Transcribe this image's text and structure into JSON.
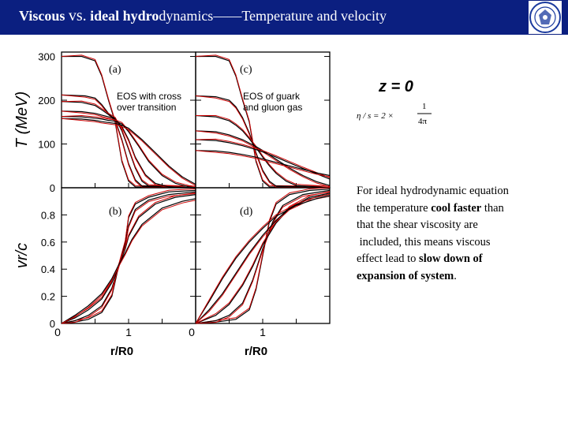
{
  "header": {
    "title_bold1": "Viscous ",
    "title_vs": "vs.",
    "title_bold2": " ideal hydro",
    "title_rest": "dynamics——Temperature and velocity"
  },
  "colors": {
    "header_bg": "#0b1f80",
    "ideal": "#000000",
    "viscous": "#cc0000"
  },
  "formula": {
    "z_eq": "z = 0",
    "eta_lhs": "η / s = 2 ×",
    "num": "1",
    "den": "4π"
  },
  "description": {
    "l1": "For ideal hydrodynamic equation",
    "l2a": "the temperature ",
    "l2b": "cool faster",
    "l2c": " than",
    "l3": "that the shear viscosity are",
    "l4": " included, this means viscous",
    "l5a": "effect lead to ",
    "l5b": "slow down of",
    "l6a": "expansion of system",
    "l6b": "."
  },
  "chart_data": [
    {
      "type": "line",
      "panel_label": "(a)",
      "annotation": [
        "EOS with cross",
        "over transition"
      ],
      "ylabel": "T (MeV)",
      "ylim": [
        0,
        310
      ],
      "yticks": [
        "0",
        "100",
        "200",
        "300"
      ],
      "xlim": [
        0,
        2
      ],
      "series": [
        {
          "points": [
            [
              0,
              300
            ],
            [
              0.3,
              300
            ],
            [
              0.5,
              290
            ],
            [
              0.6,
              255
            ],
            [
              0.7,
              200
            ],
            [
              0.8,
              150
            ],
            [
              0.9,
              60
            ],
            [
              1.0,
              15
            ],
            [
              1.1,
              2
            ],
            [
              2,
              0
            ]
          ]
        },
        {
          "points": [
            [
              0,
              212
            ],
            [
              0.35,
              210
            ],
            [
              0.5,
              205
            ],
            [
              0.6,
              190
            ],
            [
              0.7,
              170
            ],
            [
              0.8,
              155
            ],
            [
              0.9,
              110
            ],
            [
              1.0,
              55
            ],
            [
              1.1,
              18
            ],
            [
              1.2,
              4
            ],
            [
              2,
              0
            ]
          ]
        },
        {
          "points": [
            [
              0,
              197
            ],
            [
              0.3,
              195
            ],
            [
              0.5,
              188
            ],
            [
              0.6,
              178
            ],
            [
              0.7,
              167
            ],
            [
              0.8,
              158
            ],
            [
              0.9,
              130
            ],
            [
              1.0,
              88
            ],
            [
              1.1,
              45
            ],
            [
              1.2,
              15
            ],
            [
              1.3,
              4
            ],
            [
              2,
              0
            ]
          ]
        },
        {
          "points": [
            [
              0,
              175
            ],
            [
              0.3,
              174
            ],
            [
              0.5,
              170
            ],
            [
              0.6,
              166
            ],
            [
              0.7,
              162
            ],
            [
              0.8,
              157
            ],
            [
              0.9,
              140
            ],
            [
              1.0,
              110
            ],
            [
              1.1,
              70
            ],
            [
              1.25,
              30
            ],
            [
              1.4,
              10
            ],
            [
              1.6,
              2
            ],
            [
              2,
              0
            ]
          ]
        },
        {
          "points": [
            [
              0,
              163
            ],
            [
              0.3,
              162
            ],
            [
              0.5,
              159
            ],
            [
              0.6,
              157
            ],
            [
              0.7,
              154
            ],
            [
              0.8,
              152
            ],
            [
              0.9,
              146
            ],
            [
              1.0,
              128
            ],
            [
              1.15,
              95
            ],
            [
              1.3,
              60
            ],
            [
              1.5,
              28
            ],
            [
              1.7,
              10
            ],
            [
              1.9,
              2
            ],
            [
              2,
              0
            ]
          ]
        },
        {
          "points": [
            [
              0,
              158
            ],
            [
              0.3,
              157
            ],
            [
              0.5,
              154
            ],
            [
              0.6,
              151
            ],
            [
              0.7,
              149
            ],
            [
              0.8,
              147
            ],
            [
              0.9,
              143
            ],
            [
              1.0,
              136
            ],
            [
              1.2,
              110
            ],
            [
              1.4,
              80
            ],
            [
              1.6,
              50
            ],
            [
              1.8,
              25
            ],
            [
              2,
              8
            ]
          ]
        }
      ]
    },
    {
      "type": "line",
      "panel_label": "(c)",
      "annotation": [
        "EOS of guark",
        "and gluon gas"
      ],
      "ylim": [
        0,
        310
      ],
      "xlim": [
        0,
        2
      ],
      "series": [
        {
          "points": [
            [
              0,
              300
            ],
            [
              0.3,
              300
            ],
            [
              0.5,
              290
            ],
            [
              0.6,
              255
            ],
            [
              0.7,
              200
            ],
            [
              0.8,
              150
            ],
            [
              0.9,
              60
            ],
            [
              1.0,
              15
            ],
            [
              1.1,
              2
            ],
            [
              2,
              0
            ]
          ]
        },
        {
          "points": [
            [
              0,
              210
            ],
            [
              0.3,
              208
            ],
            [
              0.5,
              200
            ],
            [
              0.6,
              185
            ],
            [
              0.7,
              160
            ],
            [
              0.8,
              125
            ],
            [
              0.9,
              80
            ],
            [
              1.0,
              40
            ],
            [
              1.1,
              15
            ],
            [
              1.2,
              4
            ],
            [
              2,
              0
            ]
          ]
        },
        {
          "points": [
            [
              0,
              165
            ],
            [
              0.3,
              162
            ],
            [
              0.5,
              153
            ],
            [
              0.6,
              143
            ],
            [
              0.7,
              130
            ],
            [
              0.8,
              112
            ],
            [
              0.9,
              92
            ],
            [
              1.0,
              70
            ],
            [
              1.1,
              50
            ],
            [
              1.2,
              33
            ],
            [
              1.35,
              15
            ],
            [
              1.5,
              5
            ],
            [
              2,
              0
            ]
          ]
        },
        {
          "points": [
            [
              0,
              130
            ],
            [
              0.3,
              128
            ],
            [
              0.5,
              121
            ],
            [
              0.7,
              110
            ],
            [
              0.9,
              94
            ],
            [
              1.0,
              85
            ],
            [
              1.2,
              65
            ],
            [
              1.4,
              45
            ],
            [
              1.6,
              28
            ],
            [
              1.8,
              14
            ],
            [
              2,
              5
            ]
          ]
        },
        {
          "points": [
            [
              0,
              110
            ],
            [
              0.3,
              108
            ],
            [
              0.5,
              103
            ],
            [
              0.7,
              96
            ],
            [
              0.9,
              87
            ],
            [
              1.0,
              82
            ],
            [
              1.2,
              70
            ],
            [
              1.4,
              57
            ],
            [
              1.6,
              44
            ],
            [
              1.8,
              32
            ],
            [
              2,
              20
            ]
          ]
        },
        {
          "points": [
            [
              0,
              85
            ],
            [
              0.3,
              84
            ],
            [
              0.5,
              81
            ],
            [
              0.7,
              76
            ],
            [
              0.9,
              70
            ],
            [
              1.0,
              66
            ],
            [
              1.2,
              58
            ],
            [
              1.4,
              50
            ],
            [
              1.6,
              42
            ],
            [
              1.8,
              34
            ],
            [
              2,
              28
            ]
          ]
        }
      ]
    },
    {
      "type": "line",
      "panel_label": "(b)",
      "ylabel": "vr/c",
      "xlabel": "r/R0",
      "ylim": [
        0,
        1.0
      ],
      "yticks": [
        "0",
        "0.2",
        "0.4",
        "0.6",
        "0.8"
      ],
      "xticks": [
        "0",
        "1"
      ],
      "xlim": [
        0,
        2
      ],
      "series": [
        {
          "points": [
            [
              0,
              0
            ],
            [
              0.2,
              0.01
            ],
            [
              0.4,
              0.03
            ],
            [
              0.6,
              0.08
            ],
            [
              0.75,
              0.2
            ],
            [
              0.85,
              0.42
            ],
            [
              0.95,
              0.6
            ],
            [
              1.0,
              0.78
            ],
            [
              1.1,
              0.88
            ],
            [
              1.3,
              0.93
            ],
            [
              1.6,
              0.97
            ],
            [
              2,
              0.98
            ]
          ]
        },
        {
          "points": [
            [
              0,
              0
            ],
            [
              0.2,
              0.02
            ],
            [
              0.4,
              0.06
            ],
            [
              0.6,
              0.13
            ],
            [
              0.75,
              0.26
            ],
            [
              0.85,
              0.42
            ],
            [
              0.95,
              0.58
            ],
            [
              1.0,
              0.72
            ],
            [
              1.1,
              0.84
            ],
            [
              1.3,
              0.91
            ],
            [
              1.6,
              0.95
            ],
            [
              2,
              0.97
            ]
          ]
        },
        {
          "points": [
            [
              0,
              0
            ],
            [
              0.2,
              0.04
            ],
            [
              0.4,
              0.1
            ],
            [
              0.6,
              0.18
            ],
            [
              0.75,
              0.3
            ],
            [
              0.85,
              0.42
            ],
            [
              0.95,
              0.55
            ],
            [
              1.0,
              0.64
            ],
            [
              1.15,
              0.78
            ],
            [
              1.4,
              0.88
            ],
            [
              1.7,
              0.93
            ],
            [
              2,
              0.95
            ]
          ]
        },
        {
          "points": [
            [
              0,
              0
            ],
            [
              0.2,
              0.06
            ],
            [
              0.4,
              0.13
            ],
            [
              0.6,
              0.22
            ],
            [
              0.75,
              0.33
            ],
            [
              0.85,
              0.43
            ],
            [
              0.95,
              0.52
            ],
            [
              1.05,
              0.62
            ],
            [
              1.2,
              0.73
            ],
            [
              1.5,
              0.85
            ],
            [
              1.8,
              0.9
            ],
            [
              2,
              0.92
            ]
          ]
        }
      ]
    },
    {
      "type": "line",
      "panel_label": "(d)",
      "xlabel": "r/R0",
      "ylim": [
        0,
        1.0
      ],
      "xticks": [
        "0",
        "1"
      ],
      "xlim": [
        0,
        2
      ],
      "series": [
        {
          "points": [
            [
              0,
              0
            ],
            [
              0.3,
              0.01
            ],
            [
              0.6,
              0.03
            ],
            [
              0.8,
              0.1
            ],
            [
              0.9,
              0.25
            ],
            [
              1.0,
              0.5
            ],
            [
              1.1,
              0.75
            ],
            [
              1.2,
              0.88
            ],
            [
              1.4,
              0.95
            ],
            [
              1.7,
              0.98
            ],
            [
              2,
              0.99
            ]
          ]
        },
        {
          "points": [
            [
              0,
              0
            ],
            [
              0.3,
              0.02
            ],
            [
              0.5,
              0.06
            ],
            [
              0.7,
              0.15
            ],
            [
              0.85,
              0.32
            ],
            [
              1.0,
              0.55
            ],
            [
              1.15,
              0.75
            ],
            [
              1.3,
              0.87
            ],
            [
              1.6,
              0.95
            ],
            [
              2,
              0.98
            ]
          ]
        },
        {
          "points": [
            [
              0,
              0
            ],
            [
              0.3,
              0.06
            ],
            [
              0.5,
              0.14
            ],
            [
              0.7,
              0.28
            ],
            [
              0.85,
              0.42
            ],
            [
              1.0,
              0.58
            ],
            [
              1.2,
              0.74
            ],
            [
              1.4,
              0.85
            ],
            [
              1.7,
              0.93
            ],
            [
              2,
              0.96
            ]
          ]
        },
        {
          "points": [
            [
              0,
              0
            ],
            [
              0.2,
              0.1
            ],
            [
              0.4,
              0.22
            ],
            [
              0.6,
              0.37
            ],
            [
              0.8,
              0.52
            ],
            [
              1.0,
              0.65
            ],
            [
              1.2,
              0.76
            ],
            [
              1.4,
              0.85
            ],
            [
              1.7,
              0.92
            ],
            [
              2,
              0.95
            ]
          ]
        },
        {
          "points": [
            [
              0,
              0
            ],
            [
              0.2,
              0.16
            ],
            [
              0.4,
              0.33
            ],
            [
              0.6,
              0.48
            ],
            [
              0.8,
              0.6
            ],
            [
              1.0,
              0.7
            ],
            [
              1.2,
              0.79
            ],
            [
              1.5,
              0.87
            ],
            [
              1.8,
              0.92
            ],
            [
              2,
              0.94
            ]
          ]
        }
      ]
    }
  ]
}
